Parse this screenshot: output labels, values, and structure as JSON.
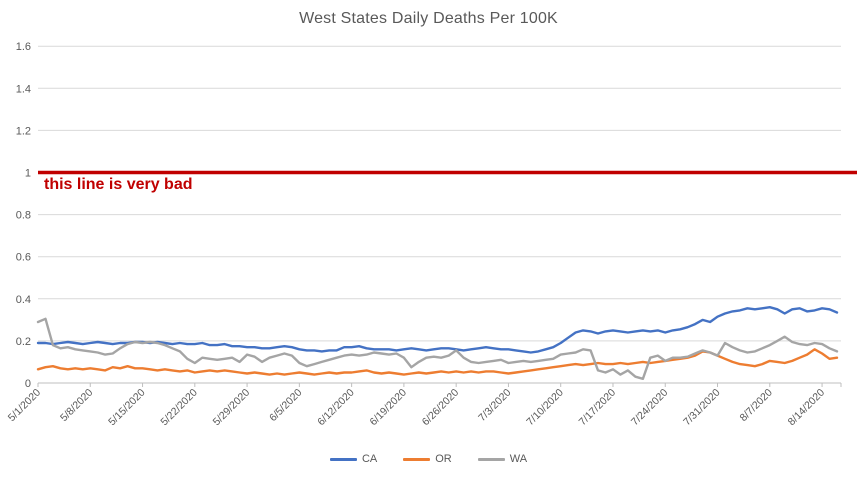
{
  "title": "West States Daily Deaths Per 100K",
  "annotation": {
    "text": "this line is very bad",
    "color": "#c00000"
  },
  "colors": {
    "ca_line": "#4472c4",
    "or_line": "#ed7d31",
    "wa_line": "#a5a5a5",
    "reference_line": "#c00000",
    "gridline": "#d9d9d9",
    "axis_line": "#bfbfbf",
    "tick_text": "#595959",
    "title_text": "#595959"
  },
  "legend": {
    "position": "bottom",
    "items": [
      {
        "label": "CA",
        "color": "#4472c4"
      },
      {
        "label": "OR",
        "color": "#ed7d31"
      },
      {
        "label": "WA",
        "color": "#a5a5a5"
      }
    ]
  },
  "chart_data": {
    "type": "line",
    "title": "West States Daily Deaths Per 100K",
    "xlabel": "",
    "ylabel": "",
    "grid": true,
    "legend_position": "bottom",
    "ylim": [
      0,
      1.7
    ],
    "y_tick_labels": [
      "1.6",
      "1.4",
      "1.2",
      "1",
      "0.8",
      "0.6",
      "0.4",
      "0.2",
      "0"
    ],
    "y_tick_values": [
      1.6,
      1.4,
      1.2,
      1,
      0.8,
      0.6,
      0.4,
      0.2,
      0
    ],
    "x_frequency": "daily",
    "x_range": [
      "5/1/2020",
      "8/16/2020"
    ],
    "x_tick_interval_days": 7,
    "x_tick_labels": [
      "5/1/2020",
      "5/8/2020",
      "5/15/2020",
      "5/22/2020",
      "5/29/2020",
      "6/5/2020",
      "6/12/2020",
      "6/19/2020",
      "6/26/2020",
      "7/3/2020",
      "7/10/2020",
      "7/17/2020",
      "7/24/2020",
      "7/31/2020",
      "8/7/2020",
      "8/14/2020"
    ],
    "reference_line": {
      "value": 1,
      "label": "this line is very bad",
      "color": "#c00000"
    },
    "series": [
      {
        "name": "CA",
        "color": "#4472c4",
        "values": [
          0.19,
          0.19,
          0.185,
          0.19,
          0.195,
          0.19,
          0.185,
          0.19,
          0.195,
          0.19,
          0.185,
          0.19,
          0.19,
          0.195,
          0.195,
          0.19,
          0.195,
          0.19,
          0.185,
          0.19,
          0.185,
          0.185,
          0.19,
          0.18,
          0.18,
          0.185,
          0.175,
          0.175,
          0.17,
          0.17,
          0.165,
          0.165,
          0.17,
          0.175,
          0.17,
          0.16,
          0.155,
          0.155,
          0.15,
          0.155,
          0.155,
          0.17,
          0.17,
          0.175,
          0.165,
          0.16,
          0.16,
          0.16,
          0.155,
          0.16,
          0.165,
          0.16,
          0.155,
          0.16,
          0.165,
          0.165,
          0.16,
          0.155,
          0.16,
          0.165,
          0.17,
          0.165,
          0.16,
          0.16,
          0.155,
          0.15,
          0.145,
          0.15,
          0.16,
          0.17,
          0.19,
          0.215,
          0.24,
          0.25,
          0.245,
          0.235,
          0.245,
          0.25,
          0.245,
          0.24,
          0.245,
          0.25,
          0.245,
          0.25,
          0.24,
          0.25,
          0.255,
          0.265,
          0.28,
          0.3,
          0.29,
          0.315,
          0.33,
          0.34,
          0.345,
          0.355,
          0.35,
          0.355,
          0.36,
          0.35,
          0.33,
          0.35,
          0.355,
          0.34,
          0.345,
          0.355,
          0.35,
          0.335
        ]
      },
      {
        "name": "OR",
        "color": "#ed7d31",
        "values": [
          0.065,
          0.075,
          0.08,
          0.07,
          0.065,
          0.07,
          0.065,
          0.07,
          0.065,
          0.06,
          0.075,
          0.07,
          0.08,
          0.07,
          0.07,
          0.065,
          0.06,
          0.065,
          0.06,
          0.055,
          0.06,
          0.05,
          0.055,
          0.06,
          0.055,
          0.06,
          0.055,
          0.05,
          0.045,
          0.05,
          0.045,
          0.04,
          0.045,
          0.04,
          0.045,
          0.05,
          0.045,
          0.04,
          0.045,
          0.05,
          0.045,
          0.05,
          0.05,
          0.055,
          0.06,
          0.05,
          0.045,
          0.05,
          0.045,
          0.04,
          0.045,
          0.05,
          0.045,
          0.05,
          0.055,
          0.05,
          0.055,
          0.05,
          0.055,
          0.05,
          0.055,
          0.055,
          0.05,
          0.045,
          0.05,
          0.055,
          0.06,
          0.065,
          0.07,
          0.075,
          0.08,
          0.085,
          0.09,
          0.085,
          0.09,
          0.095,
          0.09,
          0.09,
          0.095,
          0.09,
          0.095,
          0.1,
          0.095,
          0.1,
          0.105,
          0.11,
          0.115,
          0.12,
          0.13,
          0.15,
          0.145,
          0.13,
          0.115,
          0.1,
          0.09,
          0.085,
          0.08,
          0.09,
          0.105,
          0.1,
          0.095,
          0.105,
          0.12,
          0.135,
          0.16,
          0.14,
          0.115,
          0.12
        ]
      },
      {
        "name": "WA",
        "color": "#a5a5a5",
        "values": [
          0.29,
          0.305,
          0.18,
          0.165,
          0.17,
          0.16,
          0.155,
          0.15,
          0.145,
          0.135,
          0.14,
          0.165,
          0.185,
          0.195,
          0.19,
          0.195,
          0.19,
          0.18,
          0.165,
          0.15,
          0.115,
          0.095,
          0.12,
          0.115,
          0.11,
          0.115,
          0.12,
          0.1,
          0.135,
          0.125,
          0.1,
          0.12,
          0.13,
          0.14,
          0.13,
          0.095,
          0.08,
          0.09,
          0.1,
          0.11,
          0.12,
          0.13,
          0.135,
          0.13,
          0.135,
          0.145,
          0.14,
          0.135,
          0.14,
          0.12,
          0.075,
          0.1,
          0.12,
          0.125,
          0.12,
          0.13,
          0.155,
          0.12,
          0.1,
          0.095,
          0.1,
          0.105,
          0.11,
          0.095,
          0.1,
          0.105,
          0.1,
          0.105,
          0.11,
          0.115,
          0.135,
          0.14,
          0.145,
          0.16,
          0.155,
          0.06,
          0.05,
          0.065,
          0.04,
          0.06,
          0.03,
          0.02,
          0.12,
          0.13,
          0.105,
          0.12,
          0.12,
          0.125,
          0.14,
          0.155,
          0.145,
          0.13,
          0.19,
          0.17,
          0.155,
          0.145,
          0.15,
          0.165,
          0.18,
          0.2,
          0.22,
          0.195,
          0.185,
          0.18,
          0.19,
          0.185,
          0.165,
          0.15
        ]
      }
    ]
  }
}
